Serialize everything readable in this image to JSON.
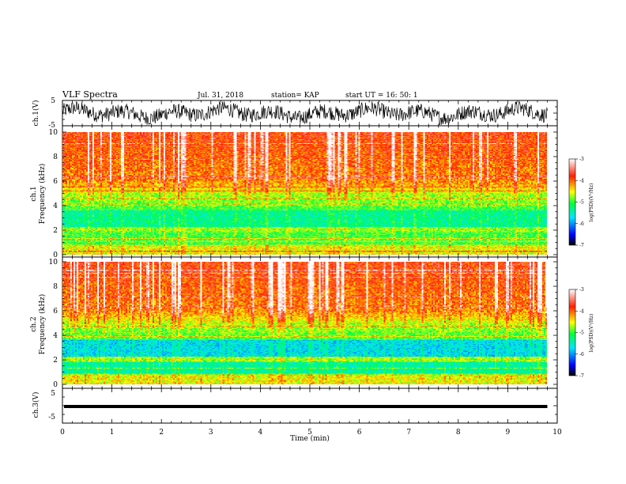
{
  "header": {
    "title": "VLF Spectra",
    "date": "Jul. 31, 2018",
    "station": "station= KAP",
    "start": "start  UT =   16: 50: 1"
  },
  "chart_data": [
    {
      "type": "line",
      "name": "ch1-waveform",
      "ylabel": "ch.1(V)",
      "ylim": [
        -5,
        5
      ],
      "yticks": [
        "5",
        "-5"
      ],
      "description_values": {
        "amplitude_range": [
          -5,
          5
        ]
      }
    },
    {
      "type": "heatmap",
      "name": "ch1-spectrogram",
      "ylabel_line1": "ch.1",
      "ylabel_line2": "Frequency (kHz)",
      "ylim": [
        0,
        10
      ],
      "yticks": [
        "0",
        "2",
        "4",
        "6",
        "8",
        "10"
      ],
      "colorbar": {
        "ticks": [
          "-3",
          "-4",
          "-5",
          "-6",
          "-7"
        ],
        "label": "log(PSD)(V²/Hz)",
        "range": [
          -7,
          -3
        ]
      }
    },
    {
      "type": "heatmap",
      "name": "ch2-spectrogram",
      "ylabel_line1": "ch.2",
      "ylabel_line2": "Frequency (kHz)",
      "ylim": [
        0,
        10
      ],
      "yticks": [
        "0",
        "2",
        "4",
        "6",
        "8",
        "10"
      ],
      "colorbar": {
        "ticks": [
          "-3",
          "-4",
          "-5",
          "-6",
          "-7"
        ],
        "label": "log(PSD)(V²/Hz)",
        "range": [
          -7,
          -3
        ]
      }
    },
    {
      "type": "line",
      "name": "ch3-waveform",
      "ylabel": "ch.3(V)",
      "ylim": [
        -5,
        5
      ],
      "yticks": [
        "5",
        "-5"
      ],
      "constant_value": 0
    }
  ],
  "xaxis": {
    "label": "Time (min)",
    "range": [
      0,
      10
    ],
    "ticks": [
      "0",
      "1",
      "2",
      "3",
      "4",
      "5",
      "6",
      "7",
      "8",
      "9",
      "10"
    ],
    "data_end": 9.8
  }
}
